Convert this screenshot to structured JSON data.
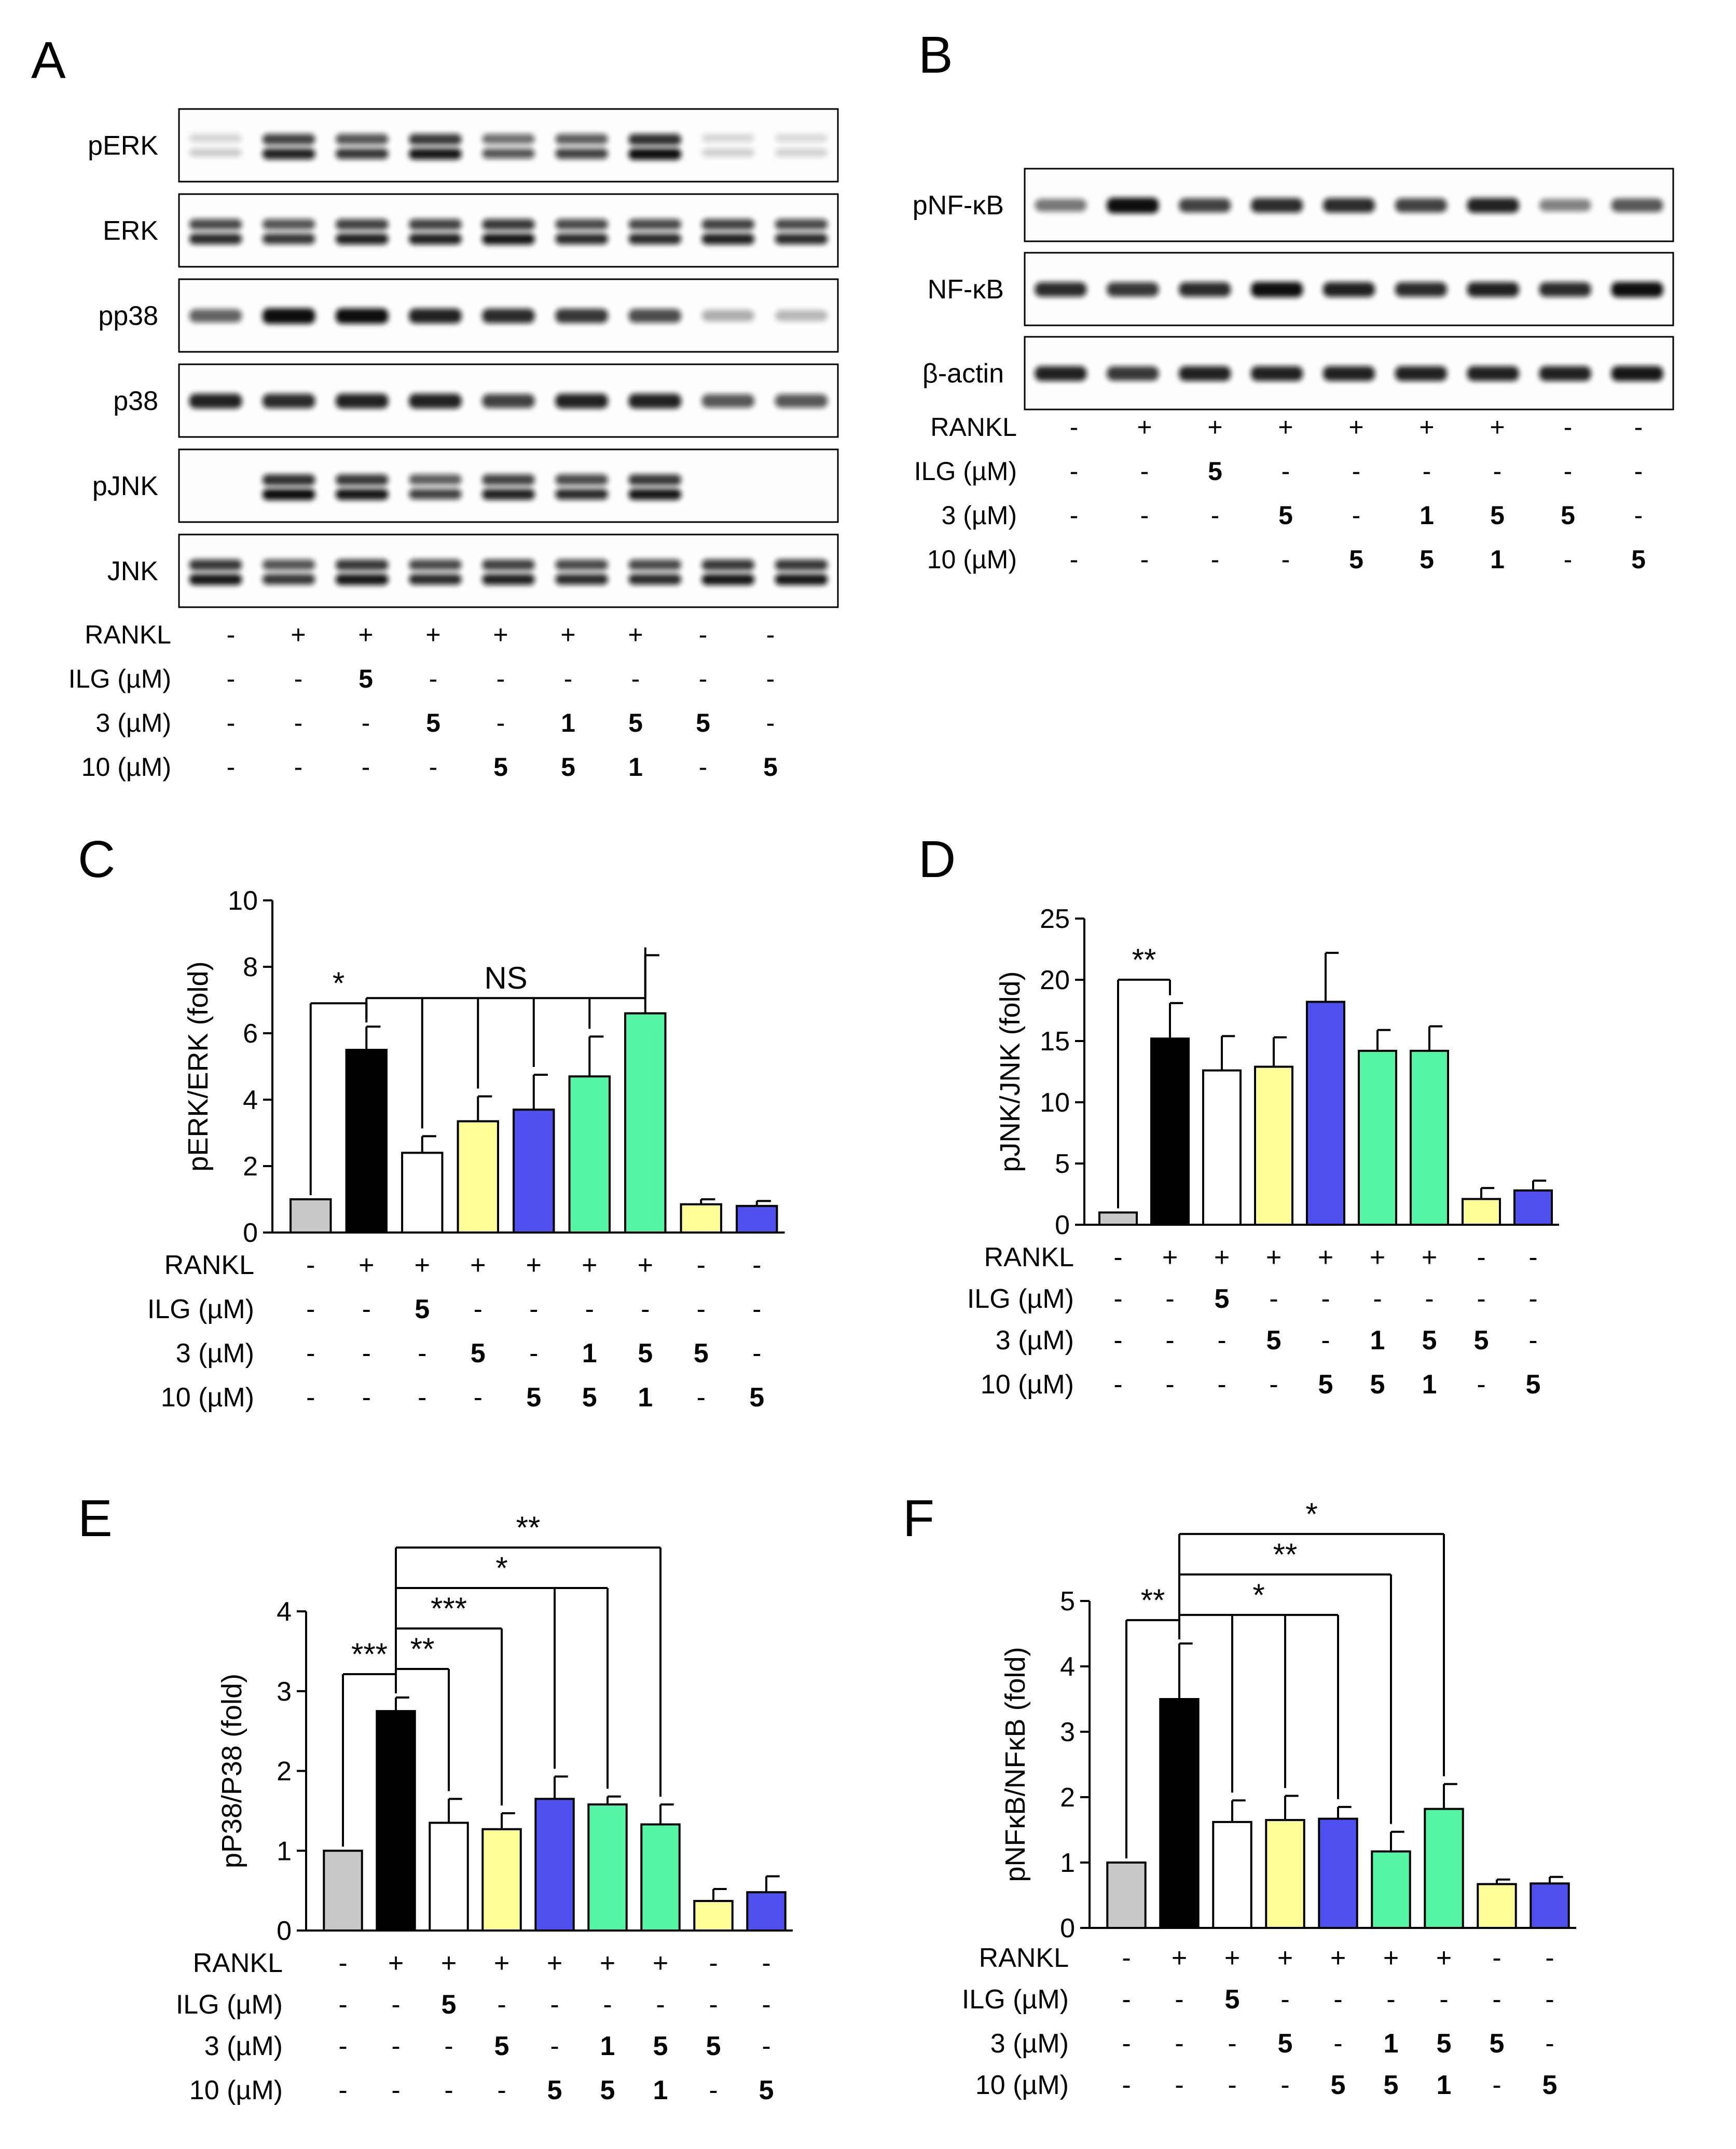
{
  "panel_labels": [
    "A",
    "B",
    "C",
    "D",
    "E",
    "F"
  ],
  "treatments": {
    "row_labels": [
      "RANKL",
      "ILG (µM)",
      "3 (µM)",
      "10 (µM)"
    ],
    "rows": [
      [
        "-",
        "+",
        "+",
        "+",
        "+",
        "+",
        "+",
        "-",
        "-"
      ],
      [
        "-",
        "-",
        "5",
        "-",
        "-",
        "-",
        "-",
        "-",
        "-"
      ],
      [
        "-",
        "-",
        "-",
        "5",
        "-",
        "1",
        "5",
        "5",
        "-"
      ],
      [
        "-",
        "-",
        "-",
        "-",
        "5",
        "5",
        "1",
        "-",
        "5"
      ]
    ]
  },
  "blots": {
    "A": [
      {
        "label": "pERK",
        "intensity": [
          0.05,
          0.85,
          0.75,
          0.9,
          0.6,
          0.7,
          1.0,
          0.04,
          0.03
        ],
        "doublet": true
      },
      {
        "label": "ERK",
        "intensity": [
          0.8,
          0.75,
          0.85,
          0.85,
          0.9,
          0.8,
          0.8,
          0.85,
          0.8
        ],
        "doublet": true
      },
      {
        "label": "pp38",
        "intensity": [
          0.55,
          1.0,
          0.95,
          0.85,
          0.8,
          0.75,
          0.65,
          0.2,
          0.15
        ],
        "doublet": false
      },
      {
        "label": "p38",
        "intensity": [
          0.85,
          0.8,
          0.85,
          0.85,
          0.7,
          0.85,
          0.85,
          0.6,
          0.6
        ],
        "doublet": false
      },
      {
        "label": "pJNK",
        "intensity": [
          0.0,
          0.95,
          0.9,
          0.7,
          0.85,
          0.8,
          0.9,
          0.0,
          0.0
        ],
        "doublet": true
      },
      {
        "label": "JNK",
        "intensity": [
          0.9,
          0.75,
          0.9,
          0.8,
          0.85,
          0.8,
          0.8,
          0.9,
          0.9
        ],
        "doublet": true
      }
    ],
    "B": [
      {
        "label": "pNF-κB",
        "intensity": [
          0.45,
          1.0,
          0.7,
          0.8,
          0.8,
          0.7,
          0.85,
          0.4,
          0.6
        ],
        "doublet": false
      },
      {
        "label": "NF-κB",
        "intensity": [
          0.8,
          0.75,
          0.8,
          0.95,
          0.85,
          0.8,
          0.85,
          0.8,
          0.95
        ],
        "doublet": false
      },
      {
        "label": "β-actin",
        "intensity": [
          0.85,
          0.75,
          0.85,
          0.85,
          0.85,
          0.85,
          0.85,
          0.85,
          0.9
        ],
        "doublet": false
      }
    ]
  },
  "bar_colors": [
    "#c8c8c8",
    "#000000",
    "#ffffff",
    "#ffff99",
    "#5050ee",
    "#55f5a5",
    "#55f5a5",
    "#ffff99",
    "#5050ee"
  ],
  "chart_data": [
    {
      "panel": "C",
      "type": "bar",
      "ylabel": "pERK/ERK (fold)",
      "ylim": [
        0,
        10
      ],
      "yticks": [
        0,
        2,
        4,
        6,
        8,
        10
      ],
      "values": [
        1.0,
        5.5,
        2.4,
        3.35,
        3.7,
        4.7,
        6.6,
        0.85,
        0.8
      ],
      "errors": [
        0.0,
        0.7,
        0.5,
        0.75,
        1.05,
        1.2,
        1.75,
        0.15,
        0.15
      ],
      "annotations": [
        {
          "text": "*",
          "from": 0,
          "to": [
            1
          ]
        },
        {
          "text": "NS",
          "from": 1,
          "to": [
            2,
            3,
            4,
            5,
            6
          ]
        }
      ]
    },
    {
      "panel": "D",
      "type": "bar",
      "ylabel": "pJNK/JNK (fold)",
      "ylim": [
        0,
        25
      ],
      "yticks": [
        0,
        5,
        10,
        15,
        20,
        25
      ],
      "values": [
        1.0,
        15.2,
        12.6,
        12.9,
        18.2,
        14.2,
        14.2,
        2.1,
        2.8
      ],
      "errors": [
        0.0,
        2.9,
        2.8,
        2.4,
        4.0,
        1.7,
        2.0,
        0.9,
        0.8
      ],
      "annotations": [
        {
          "text": "**",
          "from": 0,
          "to": [
            1
          ]
        }
      ]
    },
    {
      "panel": "E",
      "type": "bar",
      "ylabel": "pP38/P38 (fold)",
      "ylim": [
        0,
        4
      ],
      "yticks": [
        0,
        1,
        2,
        3,
        4
      ],
      "values": [
        1.0,
        2.75,
        1.35,
        1.27,
        1.65,
        1.58,
        1.33,
        0.37,
        0.48
      ],
      "errors": [
        0.0,
        0.17,
        0.3,
        0.2,
        0.28,
        0.1,
        0.25,
        0.15,
        0.2
      ],
      "annotations": [
        {
          "text": "***",
          "from": 0,
          "to": [
            1
          ]
        },
        {
          "text": "**",
          "from": 1,
          "to": [
            2
          ]
        },
        {
          "text": "***",
          "from": 1,
          "to": [
            3
          ]
        },
        {
          "text": "*",
          "from": 1,
          "to": [
            4,
            5
          ]
        },
        {
          "text": "**",
          "from": 1,
          "to": [
            6
          ]
        }
      ]
    },
    {
      "panel": "F",
      "type": "bar",
      "ylabel": "pNFκB/NFκB (fold)",
      "ylim": [
        0,
        5
      ],
      "yticks": [
        0,
        1,
        2,
        3,
        4,
        5
      ],
      "values": [
        1.0,
        3.5,
        1.62,
        1.65,
        1.67,
        1.17,
        1.82,
        0.67,
        0.68
      ],
      "errors": [
        0.0,
        0.85,
        0.33,
        0.37,
        0.18,
        0.3,
        0.38,
        0.07,
        0.1
      ],
      "annotations": [
        {
          "text": "**",
          "from": 0,
          "to": [
            1
          ]
        },
        {
          "text": "*",
          "from": 1,
          "to": [
            2,
            3,
            4
          ]
        },
        {
          "text": "**",
          "from": 1,
          "to": [
            5
          ]
        },
        {
          "text": "*",
          "from": 1,
          "to": [
            6
          ]
        }
      ]
    }
  ]
}
